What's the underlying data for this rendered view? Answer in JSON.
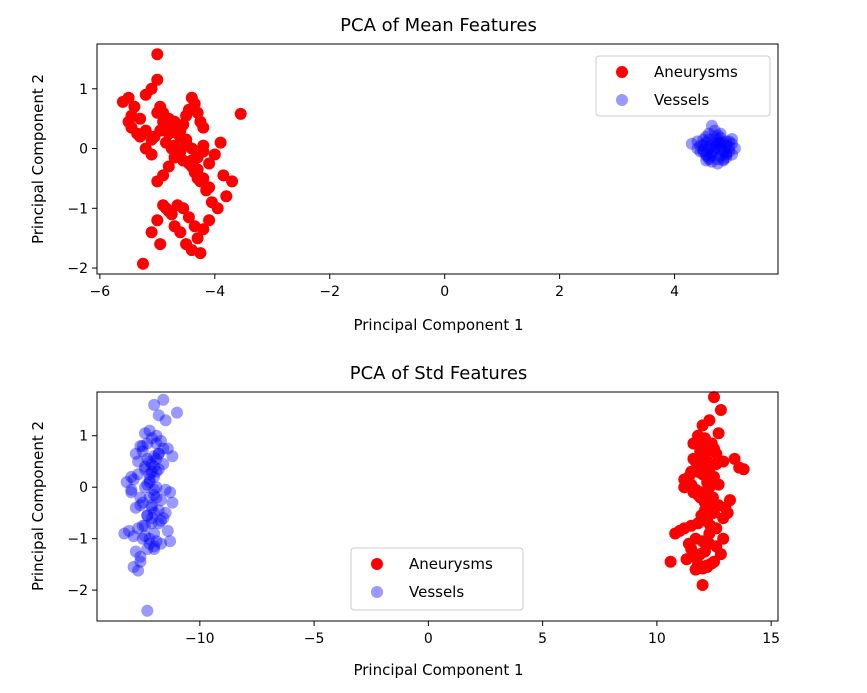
{
  "chart_data": [
    {
      "type": "scatter",
      "title": "PCA of Mean Features",
      "xlabel": "Principal Component 1",
      "ylabel": "Principal Component 2",
      "xlim": [
        -6.05,
        5.8
      ],
      "ylim": [
        -2.1,
        1.75
      ],
      "xticks": [
        -6,
        -4,
        -2,
        0,
        2,
        4
      ],
      "yticks": [
        -2,
        -1,
        0,
        1
      ],
      "grid": false,
      "legend_position": "upper right",
      "series": [
        {
          "name": "Aneurysms",
          "color": "#ff0000",
          "alpha": 1.0,
          "x": [
            -5.0,
            -5.5,
            -5.6,
            -5.45,
            -5.5,
            -5.2,
            -5.1,
            -5.0,
            -4.95,
            -4.9,
            -4.85,
            -4.8,
            -4.75,
            -4.7,
            -4.65,
            -4.6,
            -4.55,
            -4.5,
            -4.45,
            -4.4,
            -4.35,
            -4.3,
            -4.25,
            -4.2,
            -4.5,
            -4.6,
            -4.7,
            -4.8,
            -4.9,
            -5.0,
            -5.1,
            -5.2,
            -5.3,
            -4.4,
            -4.3,
            -4.2,
            -4.1,
            -4.0,
            -3.9,
            -3.85,
            -3.8,
            -3.7,
            -3.55,
            -5.05,
            -4.95,
            -4.85,
            -4.75,
            -4.65,
            -4.55,
            -4.45,
            -4.35,
            -4.25,
            -4.15,
            -4.05,
            -3.95,
            -4.1,
            -4.2,
            -4.3,
            -4.4,
            -4.5,
            -4.6,
            -4.7,
            -4.8,
            -4.9,
            -5.0,
            -5.1,
            -4.95,
            -4.85,
            -4.75,
            -4.65,
            -4.55,
            -4.45,
            -4.35,
            -4.25,
            -5.4,
            -5.3,
            -5.2,
            -5.1,
            -5.0,
            -4.9,
            -4.8,
            -4.7,
            -4.6,
            -4.5,
            -4.4,
            -4.3,
            -4.2,
            -4.9,
            -4.8,
            -4.7,
            -4.6,
            -4.5,
            -4.4,
            -4.3,
            -4.2,
            -4.1,
            -5.25,
            -5.35,
            -5.45
          ],
          "y": [
            1.58,
            0.85,
            0.78,
            0.55,
            0.45,
            0.9,
            1.0,
            1.15,
            0.7,
            0.6,
            0.5,
            0.4,
            0.35,
            0.3,
            0.25,
            0.2,
            0.4,
            0.55,
            0.65,
            0.85,
            0.75,
            0.6,
            0.45,
            0.35,
            0.1,
            -0.05,
            -0.15,
            -0.3,
            -0.45,
            -0.55,
            -0.1,
            0.0,
            0.2,
            -0.2,
            -0.35,
            -0.5,
            -0.65,
            -0.1,
            0.1,
            -0.45,
            -0.8,
            -0.55,
            0.58,
            0.2,
            0.3,
            0.1,
            0.0,
            -0.1,
            -0.2,
            -0.25,
            -0.4,
            -0.55,
            -0.7,
            -0.9,
            -1.0,
            -1.2,
            -1.35,
            -1.5,
            -1.7,
            -1.6,
            -1.4,
            -1.3,
            -1.05,
            -0.95,
            -1.2,
            -1.4,
            -1.6,
            -1.0,
            -1.1,
            -0.95,
            -1.0,
            -1.15,
            -1.3,
            -1.75,
            0.7,
            0.5,
            0.3,
            0.15,
            0.6,
            0.45,
            0.25,
            0.05,
            -0.05,
            0.15,
            -0.3,
            -0.5,
            0.05,
            0.35,
            0.5,
            0.45,
            0.3,
            0.15,
            0.0,
            -0.15,
            -0.05,
            -0.25,
            -1.93,
            0.25,
            0.35
          ]
        },
        {
          "name": "Vessels",
          "color": "#0000ff",
          "alpha": 0.4,
          "x": [
            4.3,
            4.4,
            4.45,
            4.5,
            4.55,
            4.6,
            4.65,
            4.7,
            4.75,
            4.8,
            4.85,
            4.9,
            4.95,
            5.0,
            5.05,
            4.5,
            4.55,
            4.6,
            4.65,
            4.7,
            4.75,
            4.8,
            4.85,
            4.9,
            4.95,
            5.0,
            4.4,
            4.45,
            4.5,
            4.55,
            4.6,
            4.65,
            4.7,
            4.75,
            4.8,
            4.85,
            4.9,
            4.95,
            4.6,
            4.7,
            4.8,
            4.9,
            4.55,
            4.65,
            4.75,
            4.85,
            4.5,
            4.6,
            4.7,
            4.8,
            4.9,
            5.0,
            4.55,
            4.65,
            4.75,
            4.85,
            4.6,
            4.7,
            4.8
          ],
          "y": [
            0.08,
            0.12,
            0.05,
            0.15,
            0.2,
            0.25,
            0.38,
            0.3,
            0.22,
            0.18,
            0.1,
            0.05,
            0.12,
            0.16,
            0.0,
            -0.05,
            -0.1,
            0.0,
            0.05,
            -0.02,
            0.08,
            0.0,
            -0.05,
            -0.08,
            0.02,
            -0.1,
            0.0,
            -0.05,
            0.06,
            -0.12,
            -0.15,
            -0.08,
            0.1,
            -0.18,
            -0.12,
            -0.2,
            -0.15,
            -0.05,
            0.15,
            0.2,
            0.25,
            0.12,
            -0.2,
            -0.22,
            -0.25,
            -0.18,
            -0.02,
            0.04,
            -0.06,
            0.06,
            -0.1,
            0.08,
            0.1,
            -0.12,
            0.14,
            -0.02,
            -0.18,
            0.02,
            0.1
          ]
        }
      ]
    },
    {
      "type": "scatter",
      "title": "PCA of Std Features",
      "xlabel": "Principal Component 1",
      "ylabel": "Principal Component 2",
      "xlim": [
        -14.5,
        15.3
      ],
      "ylim": [
        -2.6,
        1.85
      ],
      "xticks": [
        -10,
        -5,
        0,
        5,
        10,
        15
      ],
      "yticks": [
        -2,
        -1,
        0,
        1
      ],
      "grid": false,
      "legend_position": "lower center",
      "series": [
        {
          "name": "Aneurysms",
          "color": "#ff0000",
          "alpha": 1.0,
          "x": [
            12.5,
            12.8,
            12.3,
            12.0,
            12.7,
            11.8,
            12.1,
            12.4,
            12.2,
            11.9,
            12.6,
            11.6,
            11.7,
            12.0,
            12.3,
            12.9,
            13.4,
            13.6,
            13.8,
            11.5,
            11.4,
            11.3,
            11.2,
            11.6,
            11.9,
            12.1,
            12.4,
            12.7,
            13.0,
            13.2,
            12.5,
            12.2,
            11.8,
            11.5,
            11.2,
            11.0,
            10.8,
            10.6,
            11.7,
            12.0,
            12.3,
            12.6,
            12.9,
            12.1,
            11.9,
            11.6,
            11.3,
            11.5,
            11.8,
            12.2,
            12.5,
            12.8,
            12.0,
            11.7,
            11.4,
            12.3,
            12.6,
            12.9,
            13.1,
            12.4,
            12.1,
            11.8,
            11.5,
            11.2,
            12.0,
            12.3,
            12.6,
            11.9,
            12.2,
            12.5,
            11.6,
            11.9,
            12.2,
            12.5,
            11.7,
            12.0,
            12.3,
            11.8,
            12.1,
            12.4,
            12.7,
            12.2,
            11.9,
            12.1,
            11.95,
            12.15,
            12.35,
            12.05,
            11.85,
            12.25,
            12.45,
            12.0,
            11.7,
            11.8,
            12.2,
            12.4
          ],
          "y": [
            1.75,
            1.5,
            1.3,
            1.2,
            1.05,
            1.0,
            0.95,
            0.85,
            0.8,
            0.7,
            0.65,
            0.55,
            0.5,
            0.45,
            0.4,
            0.5,
            0.55,
            0.38,
            0.35,
            0.3,
            0.2,
            0.1,
            0.0,
            -0.1,
            -0.2,
            -0.25,
            -0.3,
            -0.35,
            -0.4,
            -0.25,
            -0.5,
            -0.6,
            -0.7,
            -0.75,
            -0.8,
            -0.85,
            -0.9,
            -1.45,
            -1.0,
            -1.05,
            -1.1,
            -1.15,
            -1.0,
            -1.25,
            -1.3,
            -1.35,
            -1.4,
            -1.2,
            -1.5,
            -1.55,
            -1.45,
            -1.3,
            -1.9,
            -1.6,
            -1.1,
            -0.9,
            -0.8,
            -0.6,
            -0.5,
            -0.4,
            -0.3,
            -0.15,
            0.05,
            0.15,
            0.25,
            0.35,
            0.45,
            0.6,
            0.7,
            0.75,
            0.85,
            0.9,
            0.1,
            0.2,
            -0.05,
            -0.1,
            0.0,
            0.3,
            0.4,
            0.15,
            0.05,
            0.5,
            0.6,
            -0.45,
            -0.55,
            -0.65,
            -0.75,
            0.25,
            0.35,
            0.45,
            -0.2,
            -1.58,
            -1.6,
            -1.55,
            -1.52,
            -1.48
          ]
        },
        {
          "name": "Vessels",
          "color": "#0000ff",
          "alpha": 0.4,
          "x": [
            -11.6,
            -12.0,
            -11.8,
            -11.0,
            -11.5,
            -12.2,
            -12.4,
            -11.9,
            -12.1,
            -11.7,
            -12.3,
            -12.6,
            -11.4,
            -11.2,
            -12.5,
            -12.8,
            -12.0,
            -11.9,
            -12.2,
            -11.6,
            -12.4,
            -11.8,
            -12.1,
            -12.7,
            -13.0,
            -13.2,
            -12.9,
            -12.3,
            -11.9,
            -11.5,
            -11.3,
            -12.0,
            -12.2,
            -11.7,
            -12.5,
            -12.6,
            -12.8,
            -11.8,
            -12.0,
            -12.3,
            -11.6,
            -12.1,
            -12.4,
            -12.7,
            -13.1,
            -13.3,
            -12.9,
            -12.2,
            -11.9,
            -11.7,
            -12.0,
            -12.3,
            -12.5,
            -12.0,
            -11.8,
            -12.1,
            -11.5,
            -11.2,
            -12.6,
            -13.0,
            -12.4,
            -12.2,
            -12.0,
            -11.9,
            -12.1,
            -12.3,
            -11.8,
            -11.6,
            -12.5,
            -12.7,
            -12.4,
            -12.2,
            -12.0,
            -11.9,
            -12.1,
            -11.7,
            -11.4,
            -11.3,
            -12.6,
            -12.8,
            -12.9,
            -13.0,
            -12.2,
            -12.0,
            -11.8,
            -11.9,
            -12.1,
            -12.3,
            -12.5,
            -12.4,
            -12.2,
            -12.6,
            -12.7,
            -12.3,
            -12.0
          ],
          "y": [
            1.7,
            1.6,
            1.4,
            1.45,
            1.3,
            1.1,
            1.05,
            1.0,
            0.95,
            0.9,
            0.85,
            0.8,
            0.75,
            0.6,
            0.7,
            0.65,
            0.6,
            0.55,
            0.5,
            0.45,
            0.4,
            0.35,
            0.3,
            0.25,
            0.2,
            0.1,
            0.15,
            0.05,
            0.0,
            -0.05,
            -0.1,
            -0.15,
            -0.2,
            -0.25,
            -0.3,
            -0.35,
            -0.4,
            -0.45,
            -0.5,
            -0.55,
            -0.6,
            -0.7,
            -0.75,
            -0.8,
            -0.85,
            -0.9,
            -0.95,
            -1.0,
            -1.05,
            -1.1,
            -1.15,
            -1.2,
            -1.0,
            -0.9,
            -0.7,
            -0.6,
            -0.5,
            -0.3,
            -0.2,
            -0.1,
            0.0,
            0.1,
            0.2,
            0.3,
            0.45,
            0.55,
            0.65,
            0.75,
            0.8,
            0.5,
            0.35,
            0.15,
            -0.05,
            -0.2,
            -0.4,
            -0.65,
            -0.85,
            -1.05,
            -1.35,
            -1.25,
            -1.55,
            -0.05,
            0.25,
            0.4,
            0.65,
            0.85,
            -0.35,
            -0.55,
            -0.75,
            -0.95,
            -1.1,
            -1.45,
            -1.62,
            -2.4,
            -1.2
          ]
        }
      ]
    }
  ]
}
